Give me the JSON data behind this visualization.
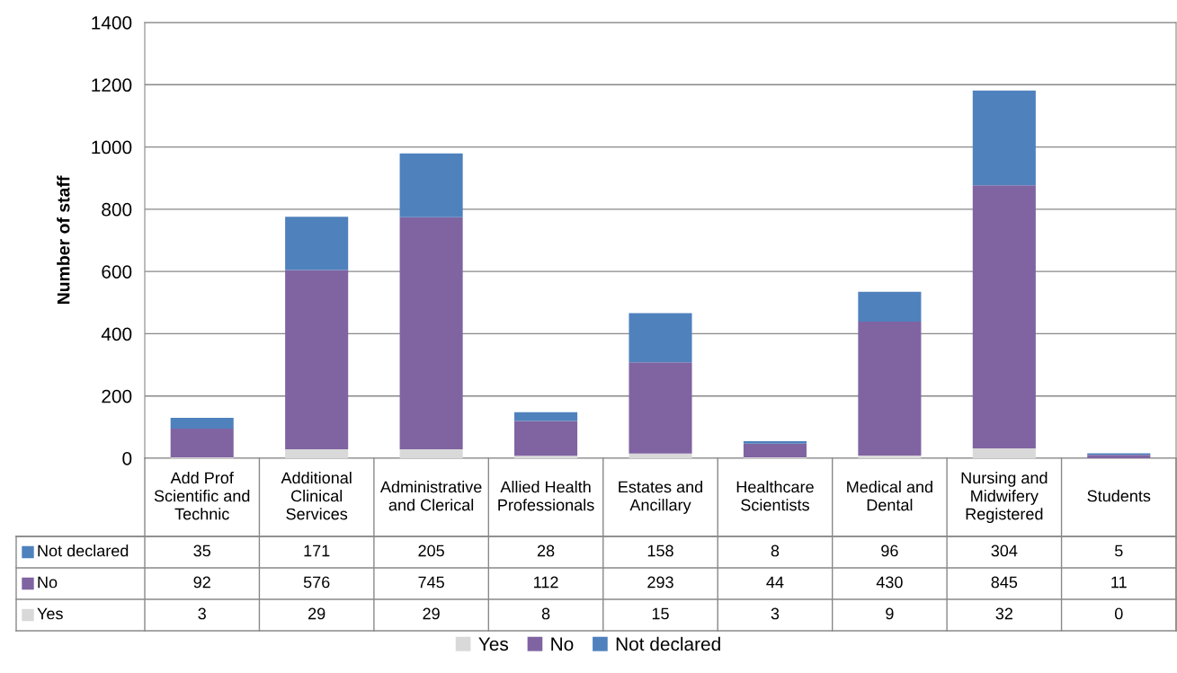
{
  "chart_data": {
    "type": "bar",
    "stacked": true,
    "ylabel": "Number of staff",
    "categories": [
      "Add Prof Scientific and Technic",
      "Additional Clinical Services",
      "Administrative and Clerical",
      "Allied Health Professionals",
      "Estates and Ancillary",
      "Healthcare Scientists",
      "Medical and Dental",
      "Nursing and Midwifery Registered",
      "Students"
    ],
    "series": [
      {
        "name": "Yes",
        "color": "#d9d9d9",
        "values": [
          3,
          29,
          29,
          8,
          15,
          3,
          9,
          32,
          0
        ]
      },
      {
        "name": "No",
        "color": "#8064a2",
        "values": [
          92,
          576,
          745,
          112,
          293,
          44,
          430,
          845,
          11
        ]
      },
      {
        "name": "Not declared",
        "color": "#4f81bd",
        "values": [
          35,
          171,
          205,
          28,
          158,
          8,
          96,
          304,
          5
        ]
      }
    ],
    "ylim": [
      0,
      1400
    ],
    "yticks": [
      0,
      200,
      400,
      600,
      800,
      1000,
      1200,
      1400
    ],
    "grid": "y",
    "legend": "bottom",
    "data_labels": true
  }
}
